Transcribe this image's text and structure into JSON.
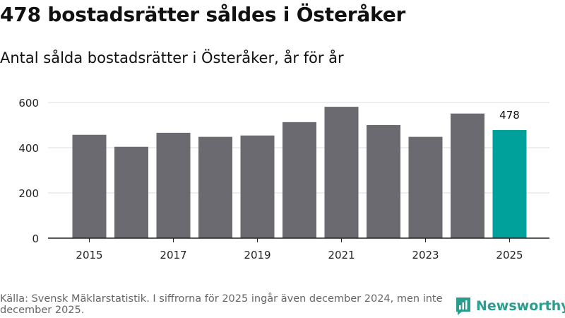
{
  "title": "478 bostadsrätter såldes i Österåker",
  "subtitle": "Antal sålda bostadsrätter i Österåker, år för år",
  "source": "Källa: Svensk Mäklarstatistik. I siffrorna för 2025 ingår även december 2024, men inte december 2025.",
  "brand": {
    "name": "Newsworthy",
    "icon": "newsworthy-logo-icon",
    "color": "#2a9d8f"
  },
  "colors": {
    "bar": "#6b6a70",
    "highlight": "#00a19a",
    "grid": "#dddddd",
    "axis": "#222222"
  },
  "chart_data": {
    "type": "bar",
    "title": "Antal sålda bostadsrätter i Österåker, år för år",
    "xlabel": "",
    "ylabel": "",
    "categories": [
      "2015",
      "2016",
      "2017",
      "2018",
      "2019",
      "2020",
      "2021",
      "2022",
      "2023",
      "2024",
      "2025"
    ],
    "values": [
      457,
      404,
      466,
      448,
      454,
      513,
      581,
      500,
      448,
      551,
      478
    ],
    "ylim": [
      0,
      600
    ],
    "yticks": [
      0,
      200,
      400,
      600
    ],
    "xtick_labels": [
      "2015",
      "2017",
      "2019",
      "2021",
      "2023",
      "2025"
    ],
    "highlight_index": 10,
    "data_labels": [
      {
        "index": 10,
        "text": "478"
      }
    ],
    "grid": true
  }
}
